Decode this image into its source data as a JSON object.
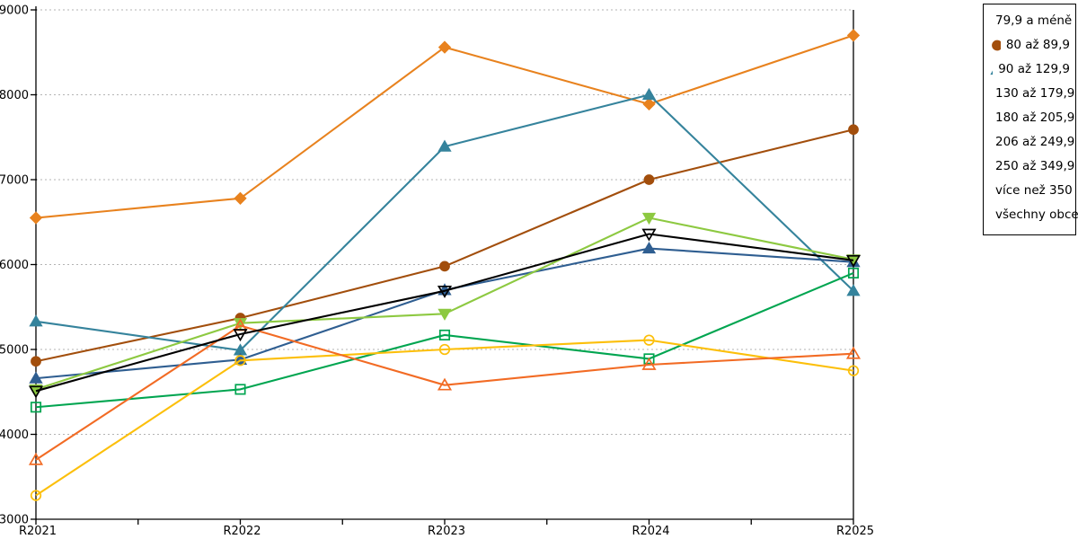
{
  "chart_data": {
    "type": "line",
    "title": "",
    "xlabel": "",
    "ylabel": "",
    "x": [
      "R2021",
      "R2022",
      "R2023",
      "R2024",
      "R2025"
    ],
    "ylim": [
      3000,
      9000
    ],
    "ytick_step": 1000,
    "yticks": [
      "3000",
      "4000",
      "5000",
      "6000",
      "7000",
      "8000",
      "9000"
    ],
    "grid": "horizontal-dotted",
    "legend_position": "top-right",
    "series": [
      {
        "name": "79,9 a méně",
        "color": "#e8821e",
        "marker": "diamond",
        "fill": "filled",
        "values": [
          6550,
          6780,
          8560,
          7890,
          8700
        ]
      },
      {
        "name": "80 až 89,9",
        "color": "#a24e0c",
        "marker": "circle",
        "fill": "filled",
        "values": [
          4860,
          5370,
          5980,
          7000,
          7590
        ]
      },
      {
        "name": "90 až 129,9",
        "color": "#35839c",
        "marker": "triangle-up",
        "fill": "filled",
        "values": [
          5330,
          4990,
          7390,
          8000,
          5690
        ]
      },
      {
        "name": "130 až 179,9",
        "color": "#2f5e91",
        "marker": "triangle-up",
        "fill": "filled",
        "values": [
          4660,
          4880,
          5700,
          6190,
          6030
        ]
      },
      {
        "name": "180 až 205,9",
        "color": "#8dc941",
        "marker": "triangle-down",
        "fill": "filled",
        "values": [
          4530,
          5310,
          5420,
          6550,
          6060
        ]
      },
      {
        "name": "206 až 249,9",
        "color": "#00a550",
        "marker": "square",
        "fill": "open",
        "values": [
          4320,
          4530,
          5170,
          4890,
          5900
        ]
      },
      {
        "name": "250 až 349,9",
        "color": "#fcbf0a",
        "marker": "circle",
        "fill": "open",
        "values": [
          3280,
          4870,
          5000,
          5110,
          4750
        ]
      },
      {
        "name": "více než 350",
        "color": "#f26b24",
        "marker": "triangle-up",
        "fill": "open",
        "values": [
          3700,
          5280,
          4580,
          4820,
          4950
        ]
      },
      {
        "name": "všechny obce",
        "color": "#000000",
        "marker": "triangle-down",
        "fill": "open",
        "values": [
          4510,
          5180,
          5690,
          6360,
          6050
        ]
      }
    ],
    "colors": {
      "axis": "#000000",
      "gridline": "#b3b3b3",
      "background": "#ffffff"
    }
  }
}
